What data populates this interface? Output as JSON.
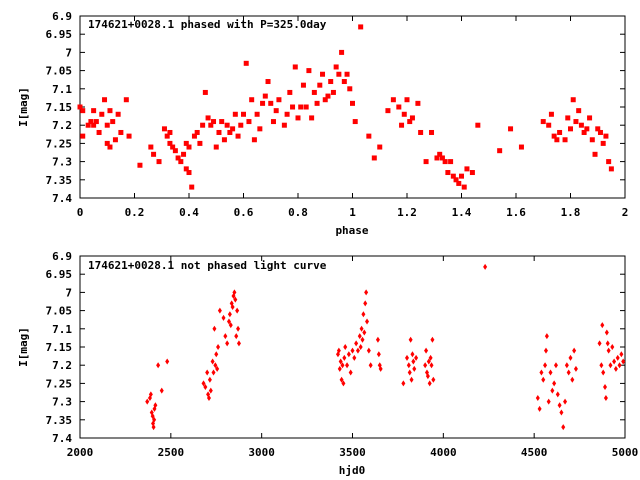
{
  "chart_data": [
    {
      "type": "scatter",
      "title": "174621+0028.1 phased with P=325.0day",
      "xlabel": "phase",
      "ylabel": "I[mag]",
      "xlim": [
        0,
        2
      ],
      "ylim": [
        7.4,
        6.9
      ],
      "y_inverted": true,
      "marker": "square",
      "color": "#ff0000",
      "xticks": [
        "0",
        "0.2",
        "0.4",
        "0.6",
        "0.8",
        "1",
        "1.2",
        "1.4",
        "1.6",
        "1.8",
        "2"
      ],
      "xtick_values": [
        0,
        0.2,
        0.4,
        0.6,
        0.8,
        1.0,
        1.2,
        1.4,
        1.6,
        1.8,
        2.0
      ],
      "yticks": [
        "6.9",
        "6.95",
        "7",
        "7.05",
        "7.1",
        "7.15",
        "7.2",
        "7.25",
        "7.3",
        "7.35",
        "7.4"
      ],
      "ytick_values": [
        6.9,
        6.95,
        7.0,
        7.05,
        7.1,
        7.15,
        7.2,
        7.25,
        7.3,
        7.35,
        7.4
      ],
      "points": [
        [
          0.0,
          7.15
        ],
        [
          0.01,
          7.16
        ],
        [
          0.01,
          7.23
        ],
        [
          0.03,
          7.2
        ],
        [
          0.04,
          7.19
        ],
        [
          0.05,
          7.16
        ],
        [
          0.05,
          7.2
        ],
        [
          0.06,
          7.19
        ],
        [
          0.07,
          7.22
        ],
        [
          0.08,
          7.17
        ],
        [
          0.09,
          7.13
        ],
        [
          0.1,
          7.2
        ],
        [
          0.1,
          7.25
        ],
        [
          0.11,
          7.26
        ],
        [
          0.11,
          7.16
        ],
        [
          0.12,
          7.19
        ],
        [
          0.13,
          7.24
        ],
        [
          0.14,
          7.17
        ],
        [
          0.15,
          7.22
        ],
        [
          0.17,
          7.13
        ],
        [
          0.18,
          7.23
        ],
        [
          0.22,
          7.31
        ],
        [
          0.26,
          7.26
        ],
        [
          0.27,
          7.28
        ],
        [
          0.29,
          7.3
        ],
        [
          0.31,
          7.21
        ],
        [
          0.32,
          7.23
        ],
        [
          0.33,
          7.22
        ],
        [
          0.33,
          7.25
        ],
        [
          0.34,
          7.26
        ],
        [
          0.35,
          7.27
        ],
        [
          0.36,
          7.29
        ],
        [
          0.37,
          7.3
        ],
        [
          0.38,
          7.28
        ],
        [
          0.39,
          7.32
        ],
        [
          0.39,
          7.25
        ],
        [
          0.4,
          7.26
        ],
        [
          0.4,
          7.33
        ],
        [
          0.41,
          7.37
        ],
        [
          0.42,
          7.23
        ],
        [
          0.43,
          7.22
        ],
        [
          0.44,
          7.25
        ],
        [
          0.45,
          7.2
        ],
        [
          0.46,
          7.11
        ],
        [
          0.47,
          7.18
        ],
        [
          0.48,
          7.2
        ],
        [
          0.49,
          7.19
        ],
        [
          0.5,
          7.26
        ],
        [
          0.51,
          7.22
        ],
        [
          0.52,
          7.19
        ],
        [
          0.53,
          7.24
        ],
        [
          0.54,
          7.2
        ],
        [
          0.55,
          7.22
        ],
        [
          0.56,
          7.21
        ],
        [
          0.57,
          7.17
        ],
        [
          0.58,
          7.23
        ],
        [
          0.59,
          7.2
        ],
        [
          0.6,
          7.17
        ],
        [
          0.61,
          7.03
        ],
        [
          0.62,
          7.19
        ],
        [
          0.63,
          7.13
        ],
        [
          0.64,
          7.24
        ],
        [
          0.65,
          7.17
        ],
        [
          0.66,
          7.21
        ],
        [
          0.67,
          7.14
        ],
        [
          0.68,
          7.12
        ],
        [
          0.69,
          7.08
        ],
        [
          0.7,
          7.14
        ],
        [
          0.71,
          7.19
        ],
        [
          0.72,
          7.16
        ],
        [
          0.73,
          7.13
        ],
        [
          0.75,
          7.2
        ],
        [
          0.76,
          7.17
        ],
        [
          0.77,
          7.11
        ],
        [
          0.78,
          7.15
        ],
        [
          0.79,
          7.04
        ],
        [
          0.8,
          7.18
        ],
        [
          0.81,
          7.15
        ],
        [
          0.82,
          7.09
        ],
        [
          0.83,
          7.15
        ],
        [
          0.84,
          7.05
        ],
        [
          0.85,
          7.18
        ],
        [
          0.86,
          7.11
        ],
        [
          0.87,
          7.14
        ],
        [
          0.88,
          7.09
        ],
        [
          0.89,
          7.06
        ],
        [
          0.9,
          7.13
        ],
        [
          0.91,
          7.12
        ],
        [
          0.92,
          7.08
        ],
        [
          0.93,
          7.11
        ],
        [
          0.94,
          7.04
        ],
        [
          0.95,
          7.06
        ],
        [
          0.96,
          7.0
        ],
        [
          0.97,
          7.08
        ],
        [
          0.98,
          7.06
        ],
        [
          0.99,
          7.1
        ],
        [
          1.0,
          7.14
        ],
        [
          1.01,
          7.19
        ],
        [
          1.03,
          6.93
        ],
        [
          1.06,
          7.23
        ],
        [
          1.08,
          7.29
        ],
        [
          1.1,
          7.26
        ],
        [
          1.13,
          7.16
        ],
        [
          1.15,
          7.13
        ],
        [
          1.17,
          7.15
        ],
        [
          1.18,
          7.2
        ],
        [
          1.19,
          7.17
        ],
        [
          1.2,
          7.13
        ],
        [
          1.21,
          7.19
        ],
        [
          1.22,
          7.18
        ],
        [
          1.24,
          7.14
        ],
        [
          1.25,
          7.22
        ],
        [
          1.27,
          7.3
        ],
        [
          1.29,
          7.22
        ],
        [
          1.31,
          7.29
        ],
        [
          1.32,
          7.28
        ],
        [
          1.33,
          7.29
        ],
        [
          1.34,
          7.3
        ],
        [
          1.35,
          7.33
        ],
        [
          1.36,
          7.3
        ],
        [
          1.37,
          7.34
        ],
        [
          1.38,
          7.35
        ],
        [
          1.39,
          7.36
        ],
        [
          1.4,
          7.34
        ],
        [
          1.41,
          7.37
        ],
        [
          1.42,
          7.32
        ],
        [
          1.44,
          7.33
        ],
        [
          1.46,
          7.2
        ],
        [
          1.54,
          7.27
        ],
        [
          1.58,
          7.21
        ],
        [
          1.62,
          7.26
        ],
        [
          1.7,
          7.19
        ],
        [
          1.72,
          7.2
        ],
        [
          1.73,
          7.17
        ],
        [
          1.74,
          7.23
        ],
        [
          1.75,
          7.24
        ],
        [
          1.76,
          7.22
        ],
        [
          1.78,
          7.24
        ],
        [
          1.79,
          7.18
        ],
        [
          1.8,
          7.21
        ],
        [
          1.81,
          7.13
        ],
        [
          1.82,
          7.19
        ],
        [
          1.83,
          7.16
        ],
        [
          1.84,
          7.2
        ],
        [
          1.85,
          7.22
        ],
        [
          1.86,
          7.21
        ],
        [
          1.87,
          7.18
        ],
        [
          1.88,
          7.24
        ],
        [
          1.89,
          7.28
        ],
        [
          1.9,
          7.21
        ],
        [
          1.91,
          7.22
        ],
        [
          1.92,
          7.25
        ],
        [
          1.93,
          7.23
        ],
        [
          1.94,
          7.3
        ],
        [
          1.95,
          7.32
        ]
      ]
    },
    {
      "type": "scatter",
      "title": "174621+0028.1 not phased light curve",
      "xlabel": "hjd0",
      "ylabel": "I[mag]",
      "xlim": [
        2000,
        5000
      ],
      "ylim": [
        7.4,
        6.9
      ],
      "y_inverted": true,
      "marker": "diamond",
      "color": "#ff0000",
      "xticks": [
        "2000",
        "2500",
        "3000",
        "3500",
        "4000",
        "4500",
        "5000"
      ],
      "xtick_values": [
        2000,
        2500,
        3000,
        3500,
        4000,
        4500,
        5000
      ],
      "yticks": [
        "6.9",
        "6.95",
        "7",
        "7.05",
        "7.1",
        "7.15",
        "7.2",
        "7.25",
        "7.3",
        "7.35",
        "7.4"
      ],
      "ytick_values": [
        6.9,
        6.95,
        7.0,
        7.05,
        7.1,
        7.15,
        7.2,
        7.25,
        7.3,
        7.35,
        7.4
      ],
      "points": [
        [
          2370,
          7.3
        ],
        [
          2385,
          7.29
        ],
        [
          2390,
          7.28
        ],
        [
          2395,
          7.33
        ],
        [
          2400,
          7.34
        ],
        [
          2402,
          7.36
        ],
        [
          2405,
          7.37
        ],
        [
          2408,
          7.35
        ],
        [
          2410,
          7.32
        ],
        [
          2415,
          7.31
        ],
        [
          2430,
          7.2
        ],
        [
          2450,
          7.27
        ],
        [
          2480,
          7.19
        ],
        [
          2680,
          7.25
        ],
        [
          2690,
          7.26
        ],
        [
          2700,
          7.22
        ],
        [
          2705,
          7.28
        ],
        [
          2710,
          7.29
        ],
        [
          2715,
          7.24
        ],
        [
          2720,
          7.27
        ],
        [
          2730,
          7.19
        ],
        [
          2735,
          7.22
        ],
        [
          2740,
          7.1
        ],
        [
          2745,
          7.2
        ],
        [
          2750,
          7.17
        ],
        [
          2755,
          7.21
        ],
        [
          2760,
          7.15
        ],
        [
          2770,
          7.05
        ],
        [
          2790,
          7.07
        ],
        [
          2800,
          7.12
        ],
        [
          2810,
          7.14
        ],
        [
          2820,
          7.08
        ],
        [
          2825,
          7.06
        ],
        [
          2830,
          7.09
        ],
        [
          2835,
          7.03
        ],
        [
          2840,
          7.04
        ],
        [
          2845,
          7.01
        ],
        [
          2850,
          7.0
        ],
        [
          2855,
          7.02
        ],
        [
          2860,
          7.12
        ],
        [
          2865,
          7.05
        ],
        [
          2870,
          7.1
        ],
        [
          2875,
          7.14
        ],
        [
          3420,
          7.17
        ],
        [
          3425,
          7.16
        ],
        [
          3430,
          7.21
        ],
        [
          3435,
          7.19
        ],
        [
          3440,
          7.24
        ],
        [
          3445,
          7.2
        ],
        [
          3450,
          7.25
        ],
        [
          3455,
          7.18
        ],
        [
          3460,
          7.15
        ],
        [
          3470,
          7.2
        ],
        [
          3480,
          7.17
        ],
        [
          3490,
          7.22
        ],
        [
          3500,
          7.16
        ],
        [
          3510,
          7.18
        ],
        [
          3520,
          7.14
        ],
        [
          3530,
          7.16
        ],
        [
          3540,
          7.12
        ],
        [
          3545,
          7.15
        ],
        [
          3550,
          7.1
        ],
        [
          3555,
          7.13
        ],
        [
          3560,
          7.06
        ],
        [
          3565,
          7.11
        ],
        [
          3570,
          7.03
        ],
        [
          3575,
          7.0
        ],
        [
          3580,
          7.08
        ],
        [
          3590,
          7.16
        ],
        [
          3600,
          7.2
        ],
        [
          3640,
          7.13
        ],
        [
          3645,
          7.17
        ],
        [
          3650,
          7.2
        ],
        [
          3655,
          7.21
        ],
        [
          3780,
          7.25
        ],
        [
          3800,
          7.18
        ],
        [
          3810,
          7.2
        ],
        [
          3815,
          7.22
        ],
        [
          3820,
          7.13
        ],
        [
          3825,
          7.24
        ],
        [
          3830,
          7.17
        ],
        [
          3835,
          7.19
        ],
        [
          3840,
          7.21
        ],
        [
          3850,
          7.18
        ],
        [
          3900,
          7.2
        ],
        [
          3905,
          7.16
        ],
        [
          3910,
          7.22
        ],
        [
          3915,
          7.23
        ],
        [
          3920,
          7.19
        ],
        [
          3925,
          7.25
        ],
        [
          3930,
          7.18
        ],
        [
          3935,
          7.2
        ],
        [
          3940,
          7.13
        ],
        [
          3945,
          7.24
        ],
        [
          4230,
          6.93
        ],
        [
          4520,
          7.29
        ],
        [
          4530,
          7.32
        ],
        [
          4540,
          7.22
        ],
        [
          4550,
          7.24
        ],
        [
          4560,
          7.2
        ],
        [
          4565,
          7.16
        ],
        [
          4570,
          7.12
        ],
        [
          4580,
          7.3
        ],
        [
          4590,
          7.22
        ],
        [
          4600,
          7.27
        ],
        [
          4610,
          7.25
        ],
        [
          4620,
          7.2
        ],
        [
          4630,
          7.28
        ],
        [
          4640,
          7.31
        ],
        [
          4650,
          7.33
        ],
        [
          4660,
          7.37
        ],
        [
          4670,
          7.3
        ],
        [
          4680,
          7.2
        ],
        [
          4690,
          7.22
        ],
        [
          4700,
          7.18
        ],
        [
          4710,
          7.24
        ],
        [
          4720,
          7.16
        ],
        [
          4730,
          7.21
        ],
        [
          4860,
          7.14
        ],
        [
          4870,
          7.2
        ],
        [
          4875,
          7.09
        ],
        [
          4880,
          7.22
        ],
        [
          4890,
          7.26
        ],
        [
          4895,
          7.29
        ],
        [
          4900,
          7.11
        ],
        [
          4905,
          7.14
        ],
        [
          4910,
          7.16
        ],
        [
          4920,
          7.2
        ],
        [
          4930,
          7.15
        ],
        [
          4940,
          7.19
        ],
        [
          4950,
          7.21
        ],
        [
          4960,
          7.18
        ],
        [
          4970,
          7.2
        ],
        [
          4980,
          7.17
        ],
        [
          4990,
          7.19
        ]
      ]
    }
  ]
}
